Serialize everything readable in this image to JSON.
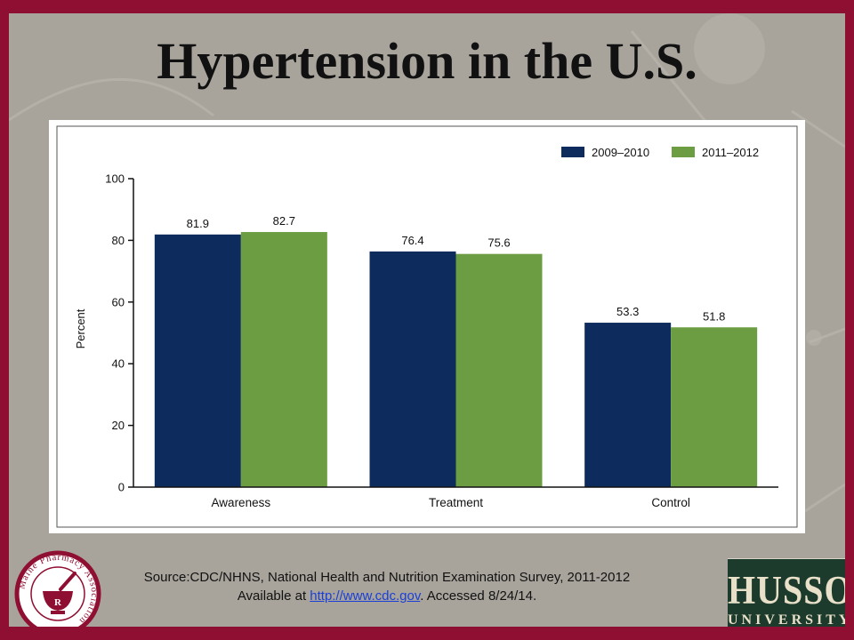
{
  "slide": {
    "title": "Hypertension in the U.S.",
    "source_line1": "Source:CDC/NHNS, National Health and Nutrition Examination Survey, 2011-2012",
    "source_line2_prefix": "Available at ",
    "source_link": "http://www.cdc.gov",
    "source_line2_suffix": ". Accessed 8/24/14.",
    "logo_left_text": "Maine Pharmacy Association",
    "logo_right_name": "HUSSON",
    "logo_right_sub": "UNIVERSITY"
  },
  "colors": {
    "series1": "#0d2b5c",
    "series2": "#6c9d42",
    "frame": "#8f0f32",
    "background": "#a8a49c"
  },
  "chart_data": {
    "type": "bar",
    "categories": [
      "Awareness",
      "Treatment",
      "Control"
    ],
    "series": [
      {
        "name": "2009–2010",
        "values": [
          81.9,
          76.4,
          53.3
        ],
        "color": "#0d2b5c"
      },
      {
        "name": "2011–2012",
        "values": [
          82.7,
          75.6,
          51.8
        ],
        "color": "#6c9d42"
      }
    ],
    "data_labels": [
      [
        "81.9",
        "76.4",
        "53.3"
      ],
      [
        "82.7",
        "75.6",
        "51.8"
      ]
    ],
    "yticks": [
      0,
      20,
      40,
      60,
      80,
      100
    ],
    "ylim": [
      0,
      100
    ],
    "ylabel": "Percent",
    "xlabel": "",
    "legend": "top-right",
    "grid": false
  }
}
